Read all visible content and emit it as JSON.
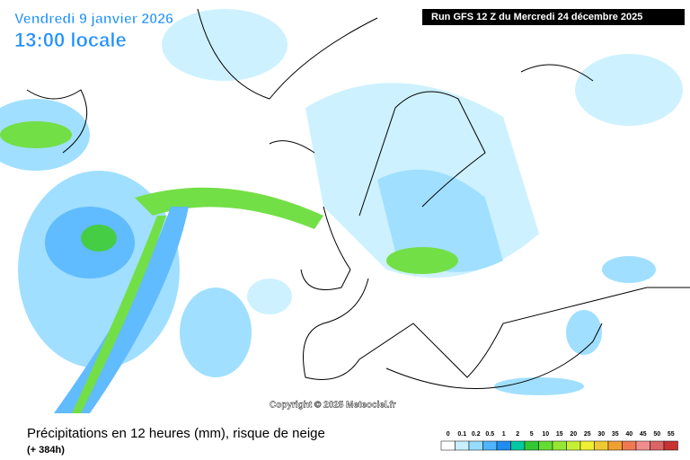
{
  "header": {
    "date": "Vendredi 9 janvier 2026",
    "time": "13:00 locale",
    "run": "Run GFS 12 Z du Mercredi 24 décembre 2025"
  },
  "copyright": "Copyright © 2025 Meteociel.fr",
  "footer": {
    "title": "Précipitations en 12 heures (mm), risque de neige",
    "lead": "(+ 384h)"
  },
  "legend": {
    "values": [
      0,
      0.1,
      0.2,
      0.5,
      1,
      2,
      5,
      10,
      15,
      20,
      25,
      30,
      35,
      40,
      45,
      50,
      55
    ],
    "colors": [
      "#ffffff",
      "#c8f0ff",
      "#96dcff",
      "#50b4ff",
      "#1e8cf0",
      "#00c8a0",
      "#32c832",
      "#64dc32",
      "#96e632",
      "#c8f032",
      "#f0f032",
      "#f0c832",
      "#f0a032",
      "#f07850",
      "#f08c8c",
      "#dc6464",
      "#c83232"
    ]
  }
}
